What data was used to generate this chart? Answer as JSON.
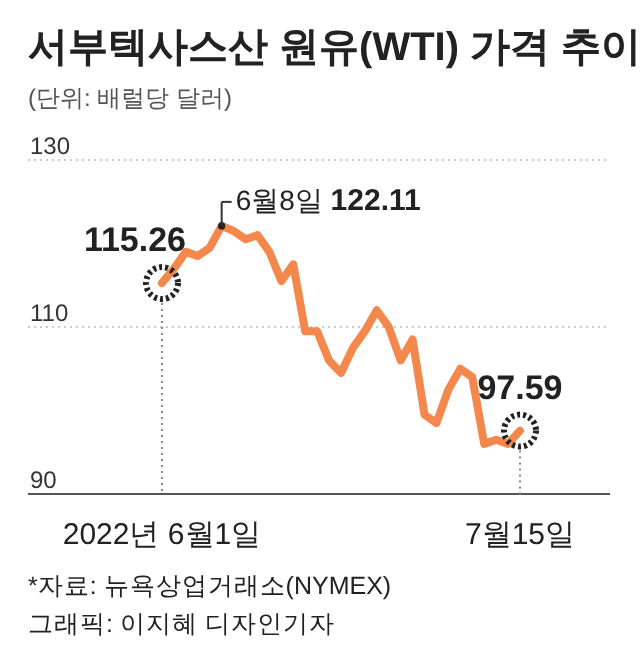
{
  "chart_data": {
    "type": "line",
    "title": "서부텍사스산 원유(WTI) 가격 추이",
    "subtitle": "(단위: 배럴당 달러)",
    "categories": [
      "2022년 6월1일",
      null,
      null,
      null,
      null,
      null,
      null,
      null,
      null,
      null,
      null,
      null,
      null,
      null,
      null,
      null,
      null,
      null,
      null,
      null,
      null,
      null,
      null,
      null,
      null,
      null,
      null,
      null,
      null,
      null,
      "7월15일"
    ],
    "series": [
      {
        "color": "#f4874b",
        "values": [
          115.26,
          117,
          119,
          118.5,
          119.5,
          122.11,
          121.5,
          120.5,
          121,
          119,
          115.5,
          117.5,
          109.5,
          109.5,
          106,
          104.5,
          107.5,
          109.5,
          112,
          110,
          106,
          108.5,
          99.5,
          98.5,
          102.5,
          105,
          104,
          96,
          96.5,
          96,
          97.59
        ]
      }
    ],
    "ylim": [
      90,
      130
    ],
    "yticks": [
      90,
      110,
      130
    ],
    "grid": "y",
    "annotations": [
      {
        "text": "115.26",
        "x": "2022년 6월1일",
        "y": 115.26
      },
      "6월8일 122.11",
      {
        "text": "97.59",
        "x": "7월15일",
        "y": 97.59
      },
      "*자료: 뉴욕상업거래소(NYMEX)",
      "그래픽: 이지혜 디자인기자"
    ]
  }
}
